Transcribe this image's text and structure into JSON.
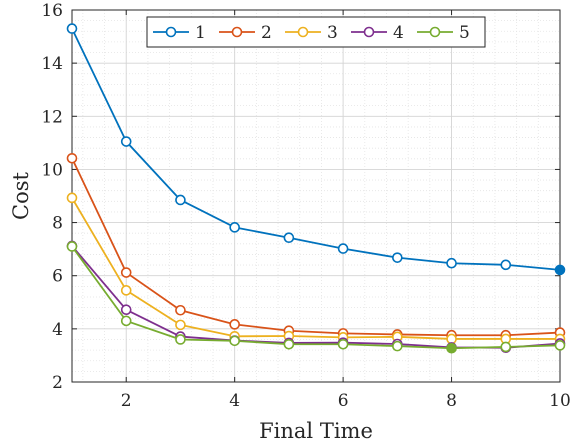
{
  "chart_data": {
    "type": "line",
    "title": "",
    "xlabel": "Final Time",
    "ylabel": "Cost",
    "xlim": [
      1,
      10
    ],
    "ylim": [
      2,
      16
    ],
    "xticks": [
      2,
      4,
      6,
      8,
      10
    ],
    "yticks": [
      2,
      4,
      6,
      8,
      10,
      12,
      14,
      16
    ],
    "grid": true,
    "minor_grid": true,
    "legend_position": "top",
    "legend_orientation": "horizontal",
    "x": [
      1,
      2,
      3,
      4,
      5,
      6,
      7,
      8,
      9,
      10
    ],
    "series": [
      {
        "name": "1",
        "color": "#0072BD",
        "values": [
          15.3,
          11.05,
          8.85,
          7.82,
          7.43,
          7.02,
          6.68,
          6.47,
          6.41,
          6.22
        ]
      },
      {
        "name": "2",
        "color": "#D95319",
        "values": [
          10.42,
          6.12,
          4.7,
          4.17,
          3.93,
          3.83,
          3.79,
          3.76,
          3.76,
          3.86
        ]
      },
      {
        "name": "3",
        "color": "#EDB120",
        "values": [
          8.93,
          5.45,
          4.15,
          3.72,
          3.73,
          3.68,
          3.7,
          3.62,
          3.62,
          3.62
        ]
      },
      {
        "name": "4",
        "color": "#7E2F8E",
        "values": [
          7.12,
          4.72,
          3.71,
          3.56,
          3.47,
          3.48,
          3.43,
          3.3,
          3.29,
          3.45
        ]
      },
      {
        "name": "5",
        "color": "#77AC30",
        "values": [
          7.1,
          4.3,
          3.6,
          3.55,
          3.42,
          3.42,
          3.35,
          3.27,
          3.32,
          3.38
        ]
      }
    ]
  }
}
